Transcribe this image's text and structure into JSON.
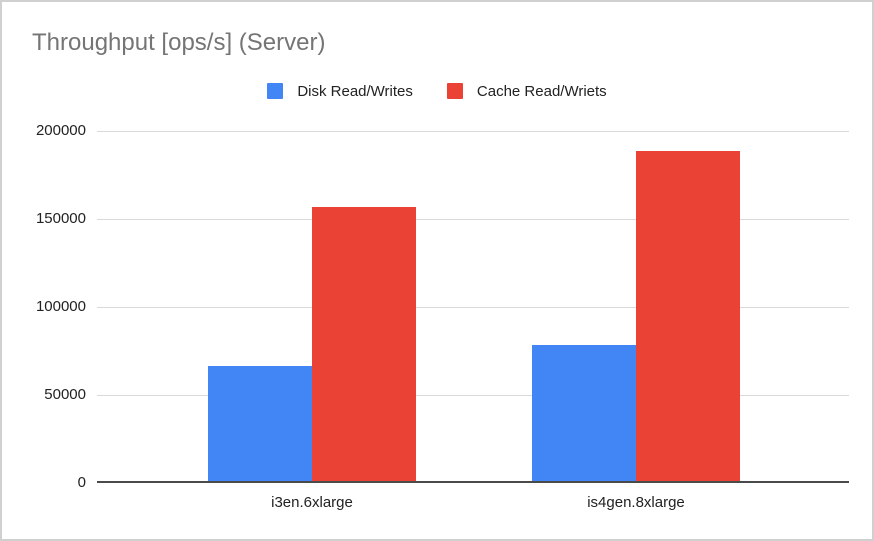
{
  "chart_data": {
    "type": "bar",
    "title": "Throughput [ops/s] (Server)",
    "categories": [
      "i3en.6xlarge",
      "is4gen.8xlarge"
    ],
    "series": [
      {
        "name": "Disk Read/Writes",
        "color": "#4285F4",
        "values": [
          66000,
          78000
        ]
      },
      {
        "name": "Cache Read/Wriets",
        "color": "#EA4335",
        "values": [
          156000,
          188000
        ]
      }
    ],
    "xlabel": "",
    "ylabel": "",
    "ylim": [
      0,
      200000
    ],
    "yticks": [
      0,
      50000,
      100000,
      150000,
      200000
    ],
    "ytick_labels": [
      "0",
      "50000",
      "100000",
      "150000",
      "200000"
    ],
    "grid": true,
    "legend_position": "top"
  },
  "style": {
    "background": "#ffffff",
    "border_color": "#d0d0d0",
    "title_color": "#757575",
    "gridline_color": "#d9d9d9",
    "baseline_color": "#4a4a4a",
    "label_color": "#222222"
  }
}
